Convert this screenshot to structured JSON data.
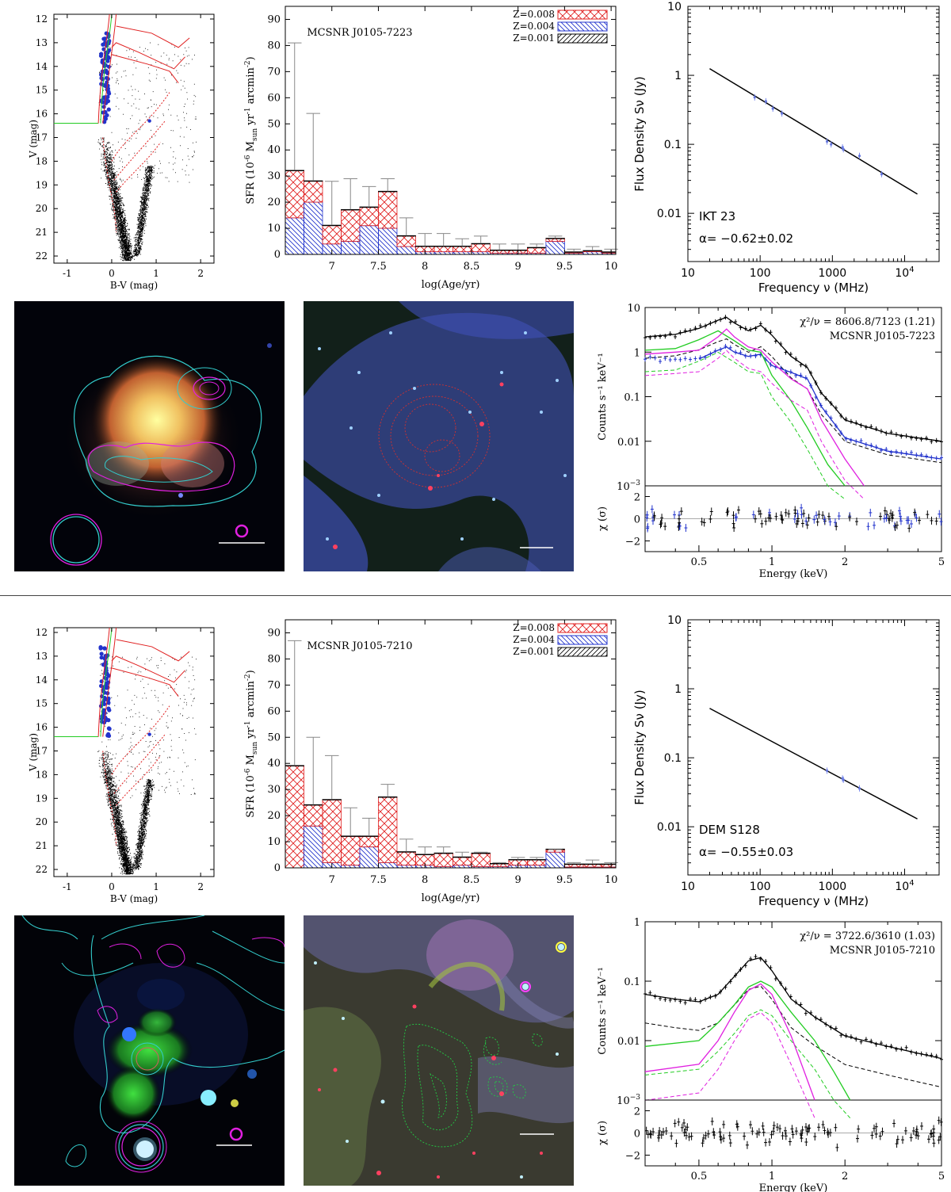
{
  "colors": {
    "red": "#e02020",
    "blue": "#2233cc",
    "green": "#22cc22",
    "magenta": "#e020e0",
    "cyan": "#33cccc",
    "black": "#000000",
    "grey": "#888888"
  },
  "hrd": {
    "xlabel": "B-V (mag)",
    "ylabel": "V (mag)",
    "xticks": [
      "-1",
      "0",
      "1",
      "2"
    ],
    "yticks": [
      "12",
      "13",
      "14",
      "15",
      "16",
      "17",
      "18",
      "19",
      "20",
      "21",
      "22"
    ]
  },
  "sfr": {
    "xlabel": "log(Age/yr)",
    "ylabel_main": "SFR (10",
    "ylabel_sup1": "-6",
    "ylabel_mid": " M",
    "ylabel_sub": "sun",
    "ylabel_rest": " yr",
    "ylabel_sup2": "-1",
    "ylabel_arc": " arcmin",
    "ylabel_sup3": "-2",
    "ylabel_end": ")",
    "legend": [
      "Z=0.008",
      "Z=0.004",
      "Z=0.001"
    ],
    "xticks": [
      "7",
      "7.5",
      "8",
      "8.5",
      "9",
      "9.5",
      "10"
    ],
    "yticks": [
      "0",
      "10",
      "20",
      "30",
      "40",
      "50",
      "60",
      "70",
      "80",
      "90"
    ]
  },
  "radio": {
    "xlabel": "Frequency ν (MHz)",
    "ylabel": "Flux Density Sν (Jy)",
    "xticks": [
      "10",
      "100",
      "1000",
      "10"
    ],
    "xtick_sup": "4",
    "yticks": [
      "0.01",
      "0.1",
      "1",
      "10"
    ]
  },
  "xray": {
    "ylabel": "Counts s⁻¹ keV⁻¹",
    "xlabel": "Energy (keV)",
    "reslabel": "χ (σ)",
    "xticks": [
      "0.5",
      "1",
      "2",
      "5"
    ]
  },
  "chart_data": [
    {
      "type": "scatter",
      "snr": "MCSNR J0105-7223",
      "panel": "colour-magnitude diagram",
      "xlim": [
        -1.3,
        2.3
      ],
      "ylim": [
        22.3,
        11.8
      ],
      "turnoff_V": 16.4
    },
    {
      "type": "bar",
      "title": "MCSNR J0105-7223",
      "categories": [
        6.6,
        6.8,
        7.0,
        7.2,
        7.4,
        7.6,
        7.8,
        8.0,
        8.2,
        8.4,
        8.6,
        8.8,
        9.0,
        9.2,
        9.4,
        9.6,
        9.8,
        10.0
      ],
      "series": [
        {
          "name": "Z=0.008",
          "values": [
            18,
            8,
            7,
            12,
            7,
            14,
            4,
            2,
            2,
            2,
            3,
            1,
            1,
            2,
            1,
            0.3,
            0.3,
            0.3
          ]
        },
        {
          "name": "Z=0.004",
          "values": [
            14,
            20,
            4,
            5,
            11,
            10,
            3,
            1,
            1,
            1,
            1,
            0.5,
            0.5,
            0.5,
            5,
            0.5,
            1,
            0.5
          ]
        },
        {
          "name": "Z=0.001",
          "values": [
            0.2,
            0.2,
            0.2,
            0.2,
            0.2,
            0.2,
            0.2,
            0.2,
            0.2,
            0.2,
            0.2,
            0.2,
            0.2,
            0.2,
            0.2,
            0.2,
            0.2,
            0.2
          ]
        }
      ],
      "errors": [
        81,
        54,
        28,
        29,
        26,
        29,
        14,
        8,
        8,
        6,
        7,
        4,
        4,
        4,
        7,
        2,
        3,
        2
      ],
      "xlabel": "log(Age/yr)",
      "ylim": [
        0,
        95
      ],
      "xlim": [
        6.5,
        10.05
      ]
    },
    {
      "type": "line",
      "title": "IKT 23",
      "alpha": "α= −0.62±0.02",
      "x": [
        20,
        15000
      ],
      "y": [
        1.25,
        0.019
      ],
      "points": {
        "x": [
          84,
          120,
          150,
          200,
          843,
          960,
          1380,
          1420,
          2370,
          4800
        ],
        "y": [
          0.48,
          0.42,
          0.33,
          0.28,
          0.11,
          0.1,
          0.09,
          0.085,
          0.068,
          0.037
        ]
      },
      "xlim": [
        10,
        30000
      ],
      "ylim": [
        0.002,
        10
      ],
      "xscale": "log",
      "yscale": "log"
    },
    {
      "type": "line",
      "title": "MCSNR J0105-7223",
      "fit": "χ²/ν = 8606.8/7123 (1.21)",
      "xlim": [
        0.3,
        5
      ],
      "ylim": [
        0.001,
        10
      ],
      "xscale": "log",
      "yscale": "log",
      "series": [
        {
          "name": "total black",
          "x": [
            0.3,
            0.4,
            0.5,
            0.6,
            0.65,
            0.7,
            0.8,
            0.9,
            1.0,
            1.2,
            1.4,
            1.6,
            1.8,
            2,
            3,
            5
          ],
          "y": [
            2.2,
            2.5,
            3.4,
            5.2,
            6,
            4.5,
            3,
            4,
            2.4,
            0.8,
            0.45,
            0.12,
            0.06,
            0.03,
            0.015,
            0.01
          ]
        },
        {
          "name": "total blue",
          "x": [
            0.5,
            0.6,
            0.65,
            0.7,
            0.8,
            0.9,
            1.0,
            1.2,
            1.4,
            1.6,
            2,
            3,
            5
          ],
          "y": [
            0.7,
            1.1,
            1.3,
            1,
            0.8,
            0.9,
            0.5,
            0.35,
            0.25,
            0.06,
            0.012,
            0.006,
            0.004
          ]
        },
        {
          "name": "green",
          "x": [
            0.3,
            0.4,
            0.5,
            0.6,
            0.7,
            0.8,
            0.9,
            1.0,
            1.2,
            1.4,
            1.7,
            2
          ],
          "y": [
            1.1,
            1.2,
            1.9,
            3,
            1.8,
            1.1,
            1,
            0.3,
            0.08,
            0.02,
            0.003,
            0.001
          ]
        },
        {
          "name": "magenta",
          "x": [
            0.3,
            0.4,
            0.5,
            0.6,
            0.65,
            0.7,
            0.8,
            0.9,
            1.0,
            1.2,
            1.4,
            1.6,
            2,
            2.4
          ],
          "y": [
            0.9,
            1,
            1.1,
            2.2,
            3.3,
            2.2,
            1.3,
            1.1,
            0.6,
            0.25,
            0.15,
            0.03,
            0.004,
            0.001
          ]
        }
      ]
    },
    {
      "type": "scatter",
      "snr": "MCSNR J0105-7210",
      "panel": "colour-magnitude diagram",
      "xlim": [
        -1.3,
        2.3
      ],
      "ylim": [
        22.3,
        11.8
      ],
      "turnoff_V": 16.4
    },
    {
      "type": "bar",
      "title": "MCSNR J0105-7210",
      "categories": [
        6.6,
        6.8,
        7.0,
        7.2,
        7.4,
        7.6,
        7.8,
        8.0,
        8.2,
        8.4,
        8.6,
        8.8,
        9.0,
        9.2,
        9.4,
        9.6,
        9.8,
        10.0
      ],
      "series": [
        {
          "name": "Z=0.008",
          "values": [
            39,
            8,
            24,
            11,
            4,
            25,
            5,
            4,
            5,
            3,
            5,
            1,
            2,
            2,
            1,
            1,
            1,
            1
          ]
        },
        {
          "name": "Z=0.004",
          "values": [
            0,
            16,
            2,
            1,
            8,
            2,
            1,
            1,
            0.5,
            1,
            0.5,
            0.5,
            1,
            1,
            6,
            0.3,
            0.3,
            0.3
          ]
        },
        {
          "name": "Z=0.001",
          "values": [
            0.2,
            0.2,
            0.2,
            0.2,
            0.2,
            0.2,
            0.2,
            0.2,
            0.2,
            0.2,
            0.2,
            0.2,
            0.2,
            0.2,
            0.2,
            0.2,
            0.2,
            0.2
          ]
        }
      ],
      "errors": [
        87,
        50,
        43,
        23,
        19,
        32,
        11,
        8,
        8,
        6,
        6,
        2,
        4,
        4,
        7,
        2,
        3,
        2
      ],
      "xlabel": "log(Age/yr)",
      "ylim": [
        0,
        95
      ],
      "xlim": [
        6.5,
        10.05
      ]
    },
    {
      "type": "line",
      "title": "DEM S128",
      "alpha": "α= −0.55±0.03",
      "x": [
        20,
        15000
      ],
      "y": [
        0.52,
        0.013
      ],
      "points": {
        "x": [
          843,
          1380,
          1420,
          2370
        ],
        "y": [
          0.065,
          0.05,
          0.048,
          0.036
        ]
      },
      "xlim": [
        10,
        30000
      ],
      "ylim": [
        0.002,
        10
      ],
      "xscale": "log",
      "yscale": "log"
    },
    {
      "type": "line",
      "title": "MCSNR J0105-7210",
      "fit": "χ²/ν = 3722.6/3610 (1.03)",
      "xlim": [
        0.3,
        5
      ],
      "ylim": [
        0.001,
        1
      ],
      "xscale": "log",
      "yscale": "log",
      "series": [
        {
          "name": "total black",
          "x": [
            0.3,
            0.4,
            0.5,
            0.6,
            0.7,
            0.8,
            0.9,
            1.0,
            1.2,
            1.5,
            2,
            3,
            5
          ],
          "y": [
            0.06,
            0.05,
            0.045,
            0.06,
            0.12,
            0.22,
            0.25,
            0.15,
            0.05,
            0.025,
            0.012,
            0.008,
            0.005
          ]
        },
        {
          "name": "green",
          "x": [
            0.3,
            0.5,
            0.6,
            0.7,
            0.8,
            0.9,
            1.0,
            1.2,
            1.5,
            1.8,
            2.1
          ],
          "y": [
            0.008,
            0.01,
            0.02,
            0.04,
            0.08,
            0.1,
            0.08,
            0.03,
            0.01,
            0.003,
            0.001
          ]
        },
        {
          "name": "magenta",
          "x": [
            0.3,
            0.5,
            0.6,
            0.7,
            0.8,
            0.9,
            1.0,
            1.2,
            1.5
          ],
          "y": [
            0.003,
            0.004,
            0.01,
            0.03,
            0.07,
            0.09,
            0.06,
            0.012,
            0.001
          ]
        }
      ]
    }
  ]
}
